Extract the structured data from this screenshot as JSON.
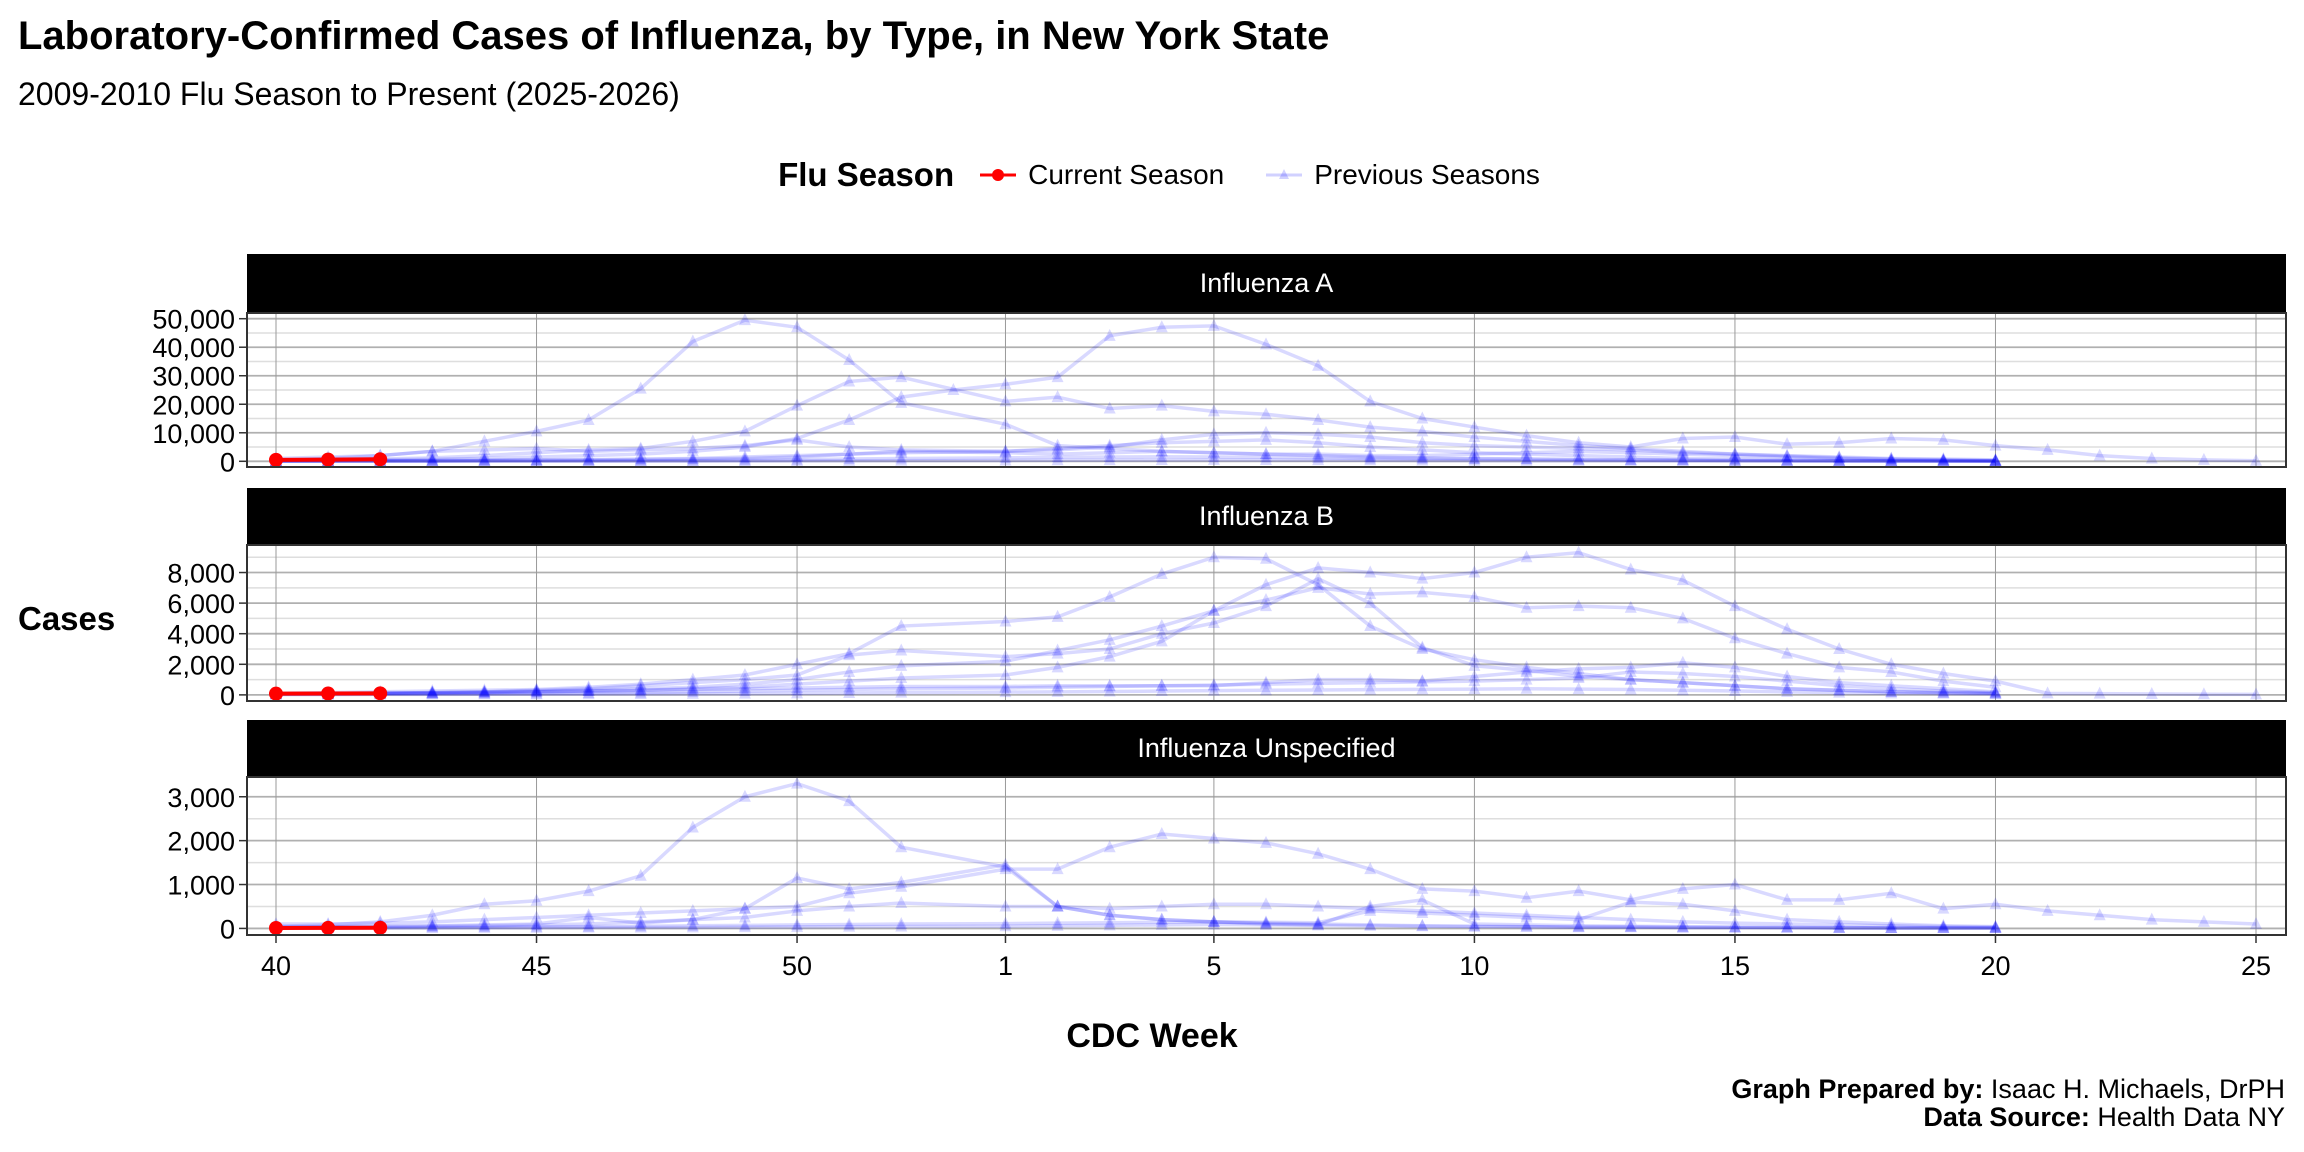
{
  "title": "Laboratory-Confirmed Cases of Influenza, by Type, in New York State",
  "subtitle": "2009-2010 Flu Season to Present (2025-2026)",
  "legend": {
    "title": "Flu Season",
    "current": "Current Season",
    "previous": "Previous Seasons"
  },
  "footer": {
    "prepared_label": "Graph Prepared by:",
    "prepared_value": "Isaac H. Michaels, DrPH",
    "source_label": "Data Source:",
    "source_value": "Health Data NY"
  },
  "colors": {
    "current": "#ff0000",
    "previous": "#0000ff"
  },
  "chart_data": {
    "type": "line",
    "xlabel": "CDC Week",
    "ylabel": "Cases",
    "weeks": [
      40,
      41,
      42,
      43,
      44,
      45,
      46,
      47,
      48,
      49,
      50,
      51,
      52,
      53,
      1,
      2,
      3,
      4,
      5,
      6,
      7,
      8,
      9,
      10,
      11,
      12,
      13,
      14,
      15,
      16,
      17,
      18,
      19,
      20,
      21,
      22,
      23,
      24,
      25
    ],
    "x_ticks": [
      40,
      45,
      50,
      1,
      5,
      10,
      15,
      20,
      25
    ],
    "grid": true,
    "legend_position": "top",
    "panels": [
      {
        "title": "Influenza A",
        "ylim": [
          -2000,
          52000
        ],
        "y_ticks": [
          0,
          10000,
          20000,
          30000,
          40000,
          50000
        ],
        "y_tick_labels": [
          "0",
          "10,000",
          "20,000",
          "30,000",
          "40,000",
          "50,000"
        ],
        "current": {
          "40": 500,
          "41": 600,
          "42": 700
        },
        "previous": [
          {
            "40": 500,
            "41": 1000,
            "42": 2000,
            "43": 3500,
            "44": 7000,
            "45": 10500,
            "46": 14500,
            "47": 25500,
            "48": 42000,
            "49": 49500,
            "50": 47000,
            "51": 35500,
            "52": 20500,
            "1": 13000,
            "2": 5500,
            "3": 4500,
            "4": 3500,
            "5": 3000,
            "6": 2500,
            "7": 2000,
            "8": 1500,
            "9": 1200,
            "10": 1000,
            "11": 800,
            "12": 600,
            "13": 500,
            "14": 400,
            "15": 300,
            "16": 200,
            "17": 150,
            "18": 100,
            "19": 80,
            "20": 60
          },
          {
            "40": 300,
            "41": 500,
            "42": 800,
            "43": 1200,
            "44": 2000,
            "45": 3000,
            "46": 4000,
            "47": 4500,
            "48": 7000,
            "49": 10500,
            "50": 19500,
            "51": 28000,
            "52": 29500,
            "1": 21000,
            "2": 22500,
            "3": 18500,
            "4": 19500,
            "5": 17500,
            "6": 16500,
            "7": 14500,
            "8": 12000,
            "9": 10500,
            "10": 8500,
            "11": 7000,
            "12": 5500,
            "13": 4500,
            "14": 3500,
            "15": 2500,
            "16": 1800,
            "17": 1200,
            "18": 800,
            "19": 500,
            "20": 300
          },
          {
            "40": 200,
            "41": 300,
            "42": 500,
            "43": 700,
            "44": 1000,
            "45": 1500,
            "46": 2000,
            "47": 2500,
            "48": 3500,
            "49": 5000,
            "50": 8000,
            "51": 14500,
            "52": 22500,
            "53": 25000,
            "1": 27000,
            "2": 29500,
            "3": 44000,
            "4": 47000,
            "5": 47500,
            "6": 41000,
            "7": 33500,
            "8": 21000,
            "9": 15000,
            "10": 12000,
            "11": 9000,
            "12": 6500,
            "13": 5000,
            "14": 8000,
            "15": 8500,
            "16": 6000,
            "17": 6500,
            "18": 8000,
            "19": 7500,
            "20": 5500,
            "21": 4000,
            "22": 2000,
            "23": 1000,
            "24": 500,
            "25": 200
          },
          {
            "40": 1000,
            "41": 1500,
            "42": 2000,
            "43": 3500,
            "44": 4000,
            "45": 4500,
            "46": 3500,
            "47": 4000,
            "48": 4500,
            "49": 5500,
            "50": 7500,
            "51": 5000,
            "52": 4000,
            "1": 3500,
            "2": 4000,
            "3": 5000,
            "4": 7500,
            "5": 9500,
            "6": 10000,
            "7": 9500,
            "8": 8500,
            "9": 6500,
            "10": 5500,
            "11": 5000,
            "12": 4500,
            "13": 4000,
            "14": 3000,
            "15": 2500,
            "16": 2000,
            "17": 1500,
            "18": 1000,
            "19": 800,
            "20": 500
          },
          {
            "40": 100,
            "41": 150,
            "42": 200,
            "43": 300,
            "44": 400,
            "45": 500,
            "46": 600,
            "47": 800,
            "48": 1000,
            "49": 1500,
            "50": 2000,
            "51": 2500,
            "52": 3000,
            "1": 3500,
            "2": 4500,
            "3": 5500,
            "4": 6500,
            "5": 7000,
            "6": 7500,
            "7": 6500,
            "8": 5000,
            "9": 4000,
            "10": 3000,
            "11": 2500,
            "12": 2000,
            "13": 1500,
            "14": 1000,
            "15": 800,
            "16": 500,
            "17": 300,
            "18": 200,
            "19": 150,
            "20": 100
          },
          {
            "40": 100,
            "41": 100,
            "42": 150,
            "43": 200,
            "44": 300,
            "45": 400,
            "46": 500,
            "47": 600,
            "48": 800,
            "49": 1000,
            "50": 1500,
            "51": 2500,
            "52": 3500,
            "1": 3000,
            "2": 2500,
            "3": 3000,
            "4": 3500,
            "5": 3000,
            "6": 2500,
            "7": 2500,
            "8": 2000,
            "9": 2000,
            "10": 2500,
            "11": 3000,
            "12": 3500,
            "13": 3000,
            "14": 2500,
            "15": 2000,
            "16": 1500,
            "17": 1000,
            "18": 600,
            "19": 400,
            "20": 200
          },
          {
            "40": 50,
            "41": 50,
            "42": 60,
            "43": 80,
            "44": 100,
            "45": 120,
            "46": 150,
            "47": 200,
            "48": 300,
            "49": 400,
            "50": 600,
            "51": 800,
            "52": 1000,
            "1": 1200,
            "2": 1400,
            "3": 1500,
            "4": 1600,
            "5": 1500,
            "6": 1400,
            "7": 1200,
            "8": 1000,
            "9": 900,
            "10": 800,
            "11": 700,
            "12": 600,
            "13": 500,
            "14": 400,
            "15": 300,
            "16": 200,
            "17": 150,
            "18": 100,
            "19": 80,
            "20": 50
          },
          {
            "40": 20,
            "41": 20,
            "42": 30,
            "43": 30,
            "44": 40,
            "45": 50,
            "46": 50,
            "47": 60,
            "48": 80,
            "49": 100,
            "50": 150,
            "51": 200,
            "52": 250,
            "1": 300,
            "2": 350,
            "3": 400,
            "4": 450,
            "5": 500,
            "6": 450,
            "7": 400,
            "8": 350,
            "9": 300,
            "10": 250,
            "11": 200,
            "12": 180,
            "13": 150,
            "14": 120,
            "15": 100,
            "16": 80,
            "17": 60,
            "18": 50,
            "19": 40,
            "20": 30
          }
        ]
      },
      {
        "title": "Influenza B",
        "ylim": [
          -400,
          9800
        ],
        "y_ticks": [
          0,
          2000,
          4000,
          6000,
          8000
        ],
        "y_tick_labels": [
          "0",
          "2,000",
          "4,000",
          "6,000",
          "8,000"
        ],
        "current": {
          "40": 80,
          "41": 90,
          "42": 100
        },
        "previous": [
          {
            "40": 100,
            "41": 150,
            "42": 200,
            "43": 250,
            "44": 300,
            "45": 350,
            "46": 500,
            "47": 700,
            "48": 1000,
            "49": 1300,
            "50": 2000,
            "51": 2700,
            "52": 4500,
            "1": 4800,
            "2": 5100,
            "3": 6400,
            "4": 7900,
            "5": 9000,
            "6": 8900,
            "7": 7200,
            "8": 4500,
            "9": 3000,
            "10": 2300,
            "11": 1800,
            "12": 1400,
            "13": 1000,
            "14": 800,
            "15": 600,
            "16": 400,
            "17": 300,
            "18": 200,
            "19": 150,
            "20": 100
          },
          {
            "40": 50,
            "41": 60,
            "42": 80,
            "43": 100,
            "44": 150,
            "45": 200,
            "46": 250,
            "47": 300,
            "48": 400,
            "49": 500,
            "50": 700,
            "51": 900,
            "52": 1100,
            "1": 1300,
            "2": 1800,
            "3": 2500,
            "4": 3500,
            "5": 5500,
            "6": 7200,
            "7": 8300,
            "8": 8000,
            "9": 7600,
            "10": 8000,
            "11": 9000,
            "12": 9300,
            "13": 8200,
            "14": 7500,
            "15": 5800,
            "16": 4300,
            "17": 3000,
            "18": 2000,
            "19": 1400,
            "20": 900,
            "21": 100,
            "22": 80,
            "23": 60,
            "24": 40,
            "25": 30
          },
          {
            "40": 80,
            "41": 100,
            "42": 120,
            "43": 150,
            "44": 200,
            "45": 250,
            "46": 300,
            "47": 400,
            "48": 500,
            "49": 700,
            "50": 1000,
            "51": 1500,
            "52": 1900,
            "1": 2200,
            "2": 2900,
            "3": 3600,
            "4": 4500,
            "5": 5500,
            "6": 6200,
            "7": 7000,
            "8": 6600,
            "9": 6700,
            "10": 6400,
            "11": 5700,
            "12": 5800,
            "13": 5700,
            "14": 5000,
            "15": 3700,
            "16": 2700,
            "17": 1800,
            "18": 1500,
            "19": 900,
            "20": 500
          },
          {
            "40": 60,
            "41": 80,
            "42": 100,
            "43": 150,
            "44": 200,
            "45": 300,
            "46": 400,
            "47": 600,
            "48": 800,
            "49": 1000,
            "50": 1300,
            "51": 2600,
            "52": 2900,
            "1": 2500,
            "2": 2700,
            "3": 3000,
            "4": 4000,
            "5": 4700,
            "6": 5800,
            "7": 7600,
            "8": 6000,
            "9": 3100,
            "10": 1900,
            "11": 1600,
            "12": 1200,
            "13": 1000,
            "14": 800,
            "15": 600,
            "16": 400,
            "17": 300,
            "18": 200,
            "19": 150,
            "20": 100
          },
          {
            "40": 100,
            "41": 100,
            "42": 120,
            "43": 150,
            "44": 150,
            "45": 200,
            "46": 250,
            "47": 300,
            "48": 350,
            "49": 400,
            "50": 450,
            "51": 500,
            "52": 550,
            "1": 550,
            "2": 600,
            "3": 600,
            "4": 600,
            "5": 600,
            "6": 800,
            "7": 1000,
            "8": 1000,
            "9": 900,
            "10": 1200,
            "11": 1500,
            "12": 1700,
            "13": 1800,
            "14": 2100,
            "15": 1800,
            "16": 1200,
            "17": 800,
            "18": 600,
            "19": 400,
            "20": 200
          },
          {
            "40": 50,
            "41": 50,
            "42": 60,
            "43": 70,
            "44": 80,
            "45": 100,
            "46": 120,
            "47": 150,
            "48": 200,
            "49": 250,
            "50": 300,
            "51": 350,
            "52": 400,
            "1": 450,
            "2": 500,
            "3": 550,
            "4": 600,
            "5": 650,
            "6": 700,
            "7": 750,
            "8": 800,
            "9": 850,
            "10": 900,
            "11": 1000,
            "12": 1100,
            "13": 1500,
            "14": 1400,
            "15": 1200,
            "16": 900,
            "17": 600,
            "18": 400,
            "19": 250,
            "20": 150
          },
          {
            "40": 20,
            "41": 20,
            "42": 30,
            "43": 30,
            "44": 40,
            "45": 40,
            "46": 50,
            "47": 60,
            "48": 70,
            "49": 80,
            "50": 100,
            "51": 120,
            "52": 150,
            "1": 180,
            "2": 200,
            "3": 220,
            "4": 250,
            "5": 280,
            "6": 300,
            "7": 320,
            "8": 340,
            "9": 360,
            "10": 380,
            "11": 400,
            "12": 380,
            "13": 350,
            "14": 300,
            "15": 250,
            "16": 200,
            "17": 150,
            "18": 100,
            "19": 80,
            "20": 50
          }
        ]
      },
      {
        "title": "Influenza Unspecified",
        "ylim": [
          -150,
          3450
        ],
        "y_ticks": [
          0,
          1000,
          2000,
          3000
        ],
        "y_tick_labels": [
          "0",
          "1,000",
          "2,000",
          "3,000"
        ],
        "current": {
          "40": 10,
          "41": 12,
          "42": 15
        },
        "previous": [
          {
            "40": 50,
            "41": 80,
            "42": 150,
            "43": 300,
            "44": 550,
            "45": 630,
            "46": 850,
            "47": 1200,
            "48": 2300,
            "49": 3000,
            "50": 3300,
            "51": 2900,
            "52": 1850,
            "1": 1400,
            "2": 500,
            "3": 300,
            "4": 200,
            "5": 150,
            "6": 120,
            "7": 100,
            "8": 80,
            "9": 60,
            "10": 50,
            "11": 40,
            "12": 30,
            "13": 30,
            "14": 20,
            "15": 20,
            "16": 20,
            "17": 10,
            "18": 10,
            "19": 10,
            "20": 10
          },
          {
            "40": 100,
            "41": 100,
            "42": 120,
            "43": 150,
            "44": 200,
            "45": 250,
            "46": 300,
            "47": 350,
            "48": 400,
            "49": 450,
            "50": 500,
            "51": 800,
            "52": 950,
            "1": 1350,
            "2": 1350,
            "3": 1850,
            "4": 2150,
            "5": 2050,
            "6": 1950,
            "7": 1700,
            "8": 1350,
            "9": 900,
            "10": 850,
            "11": 700,
            "12": 850,
            "13": 650,
            "14": 900,
            "15": 1000,
            "16": 650,
            "17": 650,
            "18": 800,
            "19": 450,
            "20": 550,
            "21": 400,
            "22": 300,
            "23": 200,
            "24": 150,
            "25": 100
          },
          {
            "40": 30,
            "41": 40,
            "42": 50,
            "43": 60,
            "44": 80,
            "45": 100,
            "46": 250,
            "47": 120,
            "48": 200,
            "49": 450,
            "50": 1150,
            "51": 900,
            "52": 1050,
            "1": 1450,
            "2": 500,
            "3": 300,
            "4": 200,
            "5": 150,
            "6": 100,
            "7": 80,
            "8": 500,
            "9": 650,
            "10": 100,
            "11": 80,
            "12": 60,
            "13": 50,
            "14": 40,
            "15": 30,
            "16": 20,
            "17": 20,
            "18": 10,
            "19": 10,
            "20": 10
          },
          {
            "40": 30,
            "41": 30,
            "42": 40,
            "43": 50,
            "44": 60,
            "45": 80,
            "46": 100,
            "47": 150,
            "48": 200,
            "49": 250,
            "50": 400,
            "51": 500,
            "52": 580,
            "1": 500,
            "2": 500,
            "3": 450,
            "4": 500,
            "5": 550,
            "6": 550,
            "7": 500,
            "8": 450,
            "9": 400,
            "10": 350,
            "11": 300,
            "12": 250,
            "13": 200,
            "14": 150,
            "15": 120,
            "16": 100,
            "17": 80,
            "18": 60,
            "19": 40,
            "20": 30
          },
          {
            "40": 20,
            "41": 20,
            "42": 20,
            "43": 30,
            "44": 30,
            "45": 40,
            "46": 40,
            "47": 50,
            "48": 60,
            "49": 70,
            "50": 80,
            "51": 90,
            "52": 100,
            "1": 110,
            "2": 120,
            "3": 130,
            "4": 140,
            "5": 150,
            "6": 140,
            "7": 130,
            "8": 400,
            "9": 350,
            "10": 300,
            "11": 250,
            "12": 200,
            "13": 600,
            "14": 550,
            "15": 400,
            "16": 200,
            "17": 150,
            "18": 100,
            "19": 60,
            "20": 40
          },
          {
            "40": 10,
            "41": 10,
            "42": 10,
            "43": 10,
            "44": 15,
            "45": 15,
            "46": 20,
            "47": 20,
            "48": 25,
            "49": 30,
            "50": 35,
            "51": 40,
            "52": 45,
            "1": 50,
            "2": 60,
            "3": 70,
            "4": 80,
            "5": 90,
            "6": 80,
            "7": 70,
            "8": 60,
            "9": 50,
            "10": 40,
            "11": 40,
            "12": 30,
            "13": 30,
            "14": 20,
            "15": 20,
            "16": 20,
            "17": 10,
            "18": 10,
            "19": 10,
            "20": 10
          }
        ]
      }
    ]
  }
}
